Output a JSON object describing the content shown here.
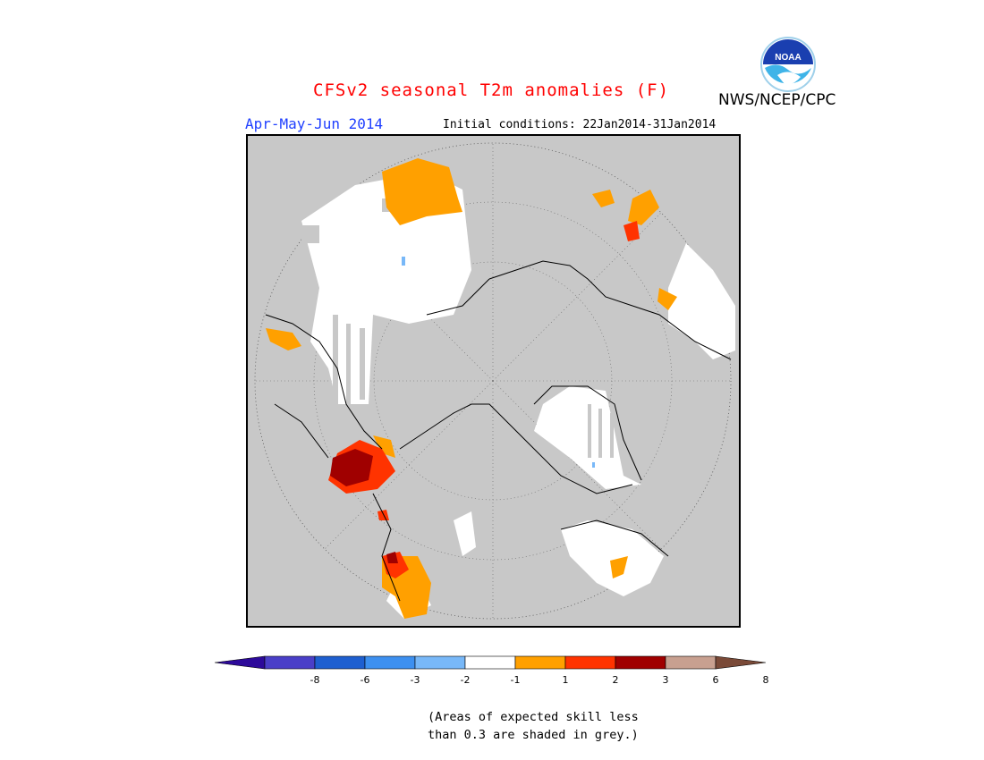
{
  "header": {
    "title": "CFSv2 seasonal T2m anomalies (F)",
    "agency": "NWS/NCEP/CPC",
    "season": "Apr-May-Jun 2014",
    "initial_conditions": "Initial conditions: 22Jan2014-31Jan2014",
    "logo_text": "NOAA"
  },
  "map": {
    "projection": "north-polar-stereographic",
    "skill_mask_color": "#c8c8c8",
    "land_neutral_color": "#ffffff",
    "anomaly_regions": [
      {
        "region": "Northern Alaska / Beaufort coast",
        "category": "6 to 8",
        "color": "#a00000"
      },
      {
        "region": "Northwest Canada",
        "category": "3 to 6",
        "color": "#ff3300"
      },
      {
        "region": "Western Canada / Rockies",
        "category": "2 to 3",
        "color": "#ff3300"
      },
      {
        "region": "Western Canada / Rockies",
        "category": "1 to 2",
        "color": "#ffa000"
      },
      {
        "region": "Western Siberia",
        "category": "1 to 2",
        "color": "#ffa000"
      },
      {
        "region": "Middle East",
        "category": "2 to 3",
        "color": "#ff3300"
      },
      {
        "region": "Northwest Africa",
        "category": "1 to 2",
        "color": "#ffa000"
      }
    ]
  },
  "colorbar": {
    "colors": [
      "#2d0a9a",
      "#4a3fc8",
      "#1e5fd0",
      "#3d90f0",
      "#78b8f8",
      "#ffffff",
      "#ffa000",
      "#ff3300",
      "#a00000",
      "#c8a090",
      "#7a4a38"
    ],
    "labels": [
      "-8",
      "-6",
      "-3",
      "-2",
      "-1",
      "1",
      "2",
      "3",
      "6",
      "8"
    ]
  },
  "caption": {
    "line1": "(Areas of expected skill less",
    "line2": "than 0.3 are shaded in grey.)"
  }
}
